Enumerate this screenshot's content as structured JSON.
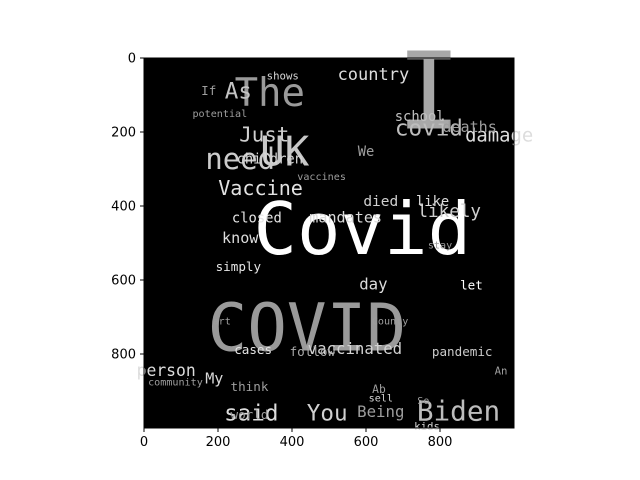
{
  "chart_data": {
    "type": "wordcloud-image",
    "title": "",
    "xlabel": "",
    "ylabel": "",
    "xlim": [
      0,
      1000
    ],
    "ylim": [
      1000,
      0
    ],
    "x_ticks": [
      0,
      200,
      400,
      600,
      800
    ],
    "y_ticks": [
      0,
      200,
      400,
      600,
      800
    ],
    "background_color": "#000000",
    "words": [
      {
        "text": "Covid",
        "x": 590,
        "y": 530,
        "size": 115,
        "color": "#ffffff"
      },
      {
        "text": "COVID",
        "x": 440,
        "y": 790,
        "size": 105,
        "color": "#9a9a9a"
      },
      {
        "text": "I",
        "x": 770,
        "y": 190,
        "size": 170,
        "color": "#a8a8a8"
      },
      {
        "text": "The",
        "x": 340,
        "y": 130,
        "size": 62,
        "color": "#9a9a9a"
      },
      {
        "text": "UK",
        "x": 380,
        "y": 290,
        "size": 65,
        "color": "#c8c8c8"
      },
      {
        "text": "need",
        "x": 260,
        "y": 300,
        "size": 46,
        "color": "#cccccc"
      },
      {
        "text": "Biden",
        "x": 850,
        "y": 980,
        "size": 44,
        "color": "#bdbdbd"
      },
      {
        "text": "said",
        "x": 290,
        "y": 980,
        "size": 36,
        "color": "#dddddd"
      },
      {
        "text": "You",
        "x": 495,
        "y": 980,
        "size": 36,
        "color": "#d0d0d0"
      },
      {
        "text": "Vaccine",
        "x": 315,
        "y": 370,
        "size": 32,
        "color": "#e2e2e2"
      },
      {
        "text": "As",
        "x": 255,
        "y": 110,
        "size": 36,
        "color": "#c4c4c4"
      },
      {
        "text": "Just",
        "x": 325,
        "y": 225,
        "size": 33,
        "color": "#d0d0d0"
      },
      {
        "text": "covid",
        "x": 770,
        "y": 210,
        "size": 36,
        "color": "#bdbdbd"
      },
      {
        "text": "damage",
        "x": 960,
        "y": 225,
        "size": 30,
        "color": "#dddddd"
      },
      {
        "text": "country",
        "x": 620,
        "y": 60,
        "size": 27,
        "color": "#dddddd"
      },
      {
        "text": "deaths",
        "x": 880,
        "y": 200,
        "size": 24,
        "color": "#9e9e9e"
      },
      {
        "text": "school",
        "x": 745,
        "y": 170,
        "size": 22,
        "color": "#c0c0c0"
      },
      {
        "text": "We",
        "x": 600,
        "y": 265,
        "size": 22,
        "color": "#9e9e9e"
      },
      {
        "text": "children",
        "x": 340,
        "y": 285,
        "size": 22,
        "color": "#d8d8d8"
      },
      {
        "text": "likely",
        "x": 825,
        "y": 430,
        "size": 28,
        "color": "#cfcfcf"
      },
      {
        "text": "mandates",
        "x": 545,
        "y": 445,
        "size": 24,
        "color": "#dadada"
      },
      {
        "text": "closed",
        "x": 305,
        "y": 445,
        "size": 22,
        "color": "#e4e4e4"
      },
      {
        "text": "died",
        "x": 640,
        "y": 400,
        "size": 23,
        "color": "#d0d0d0"
      },
      {
        "text": "like",
        "x": 780,
        "y": 400,
        "size": 22,
        "color": "#dcdcdc"
      },
      {
        "text": "know",
        "x": 260,
        "y": 500,
        "size": 24,
        "color": "#dddddd"
      },
      {
        "text": "simply",
        "x": 255,
        "y": 575,
        "size": 20,
        "color": "#e6e6e6"
      },
      {
        "text": "day",
        "x": 620,
        "y": 625,
        "size": 25,
        "color": "#dcdcdc"
      },
      {
        "text": "let",
        "x": 885,
        "y": 625,
        "size": 20,
        "color": "#ffffff"
      },
      {
        "text": "vaccinated",
        "x": 570,
        "y": 800,
        "size": 25,
        "color": "#d2d2d2"
      },
      {
        "text": "cases",
        "x": 295,
        "y": 800,
        "size": 20,
        "color": "#e4e4e4"
      },
      {
        "text": "follow",
        "x": 455,
        "y": 805,
        "size": 20,
        "color": "#aaaaaa"
      },
      {
        "text": "pandemic",
        "x": 860,
        "y": 805,
        "size": 20,
        "color": "#cacaca"
      },
      {
        "text": "person",
        "x": 60,
        "y": 860,
        "size": 26,
        "color": "#dcdcdc"
      },
      {
        "text": "community",
        "x": 85,
        "y": 885,
        "size": 16,
        "color": "#9e9e9e"
      },
      {
        "text": "think",
        "x": 285,
        "y": 900,
        "size": 20,
        "color": "#9e9e9e"
      },
      {
        "text": "world",
        "x": 285,
        "y": 975,
        "size": 20,
        "color": "#9e9e9e"
      },
      {
        "text": "My",
        "x": 190,
        "y": 880,
        "size": 24,
        "color": "#d8d8d8"
      },
      {
        "text": "Being",
        "x": 640,
        "y": 970,
        "size": 25,
        "color": "#9e9e9e"
      },
      {
        "text": "Ab",
        "x": 635,
        "y": 905,
        "size": 18,
        "color": "#9e9e9e"
      },
      {
        "text": "sell",
        "x": 640,
        "y": 928,
        "size": 16,
        "color": "#d6d6d6"
      },
      {
        "text": "kids",
        "x": 765,
        "y": 1005,
        "size": 17,
        "color": "#d8d8d8"
      },
      {
        "text": "So",
        "x": 755,
        "y": 935,
        "size": 16,
        "color": "#9e9e9e"
      },
      {
        "text": "An",
        "x": 965,
        "y": 855,
        "size": 17,
        "color": "#9e9e9e"
      },
      {
        "text": "County",
        "x": 665,
        "y": 720,
        "size": 16,
        "color": "#9e9e9e"
      },
      {
        "text": "art",
        "x": 210,
        "y": 720,
        "size": 16,
        "color": "#9e9e9e"
      },
      {
        "text": "stay",
        "x": 800,
        "y": 515,
        "size": 16,
        "color": "#9e9e9e"
      },
      {
        "text": "potential",
        "x": 205,
        "y": 160,
        "size": 16,
        "color": "#9e9e9e"
      },
      {
        "text": "If",
        "x": 175,
        "y": 100,
        "size": 20,
        "color": "#9e9e9e"
      },
      {
        "text": "shows",
        "x": 375,
        "y": 58,
        "size": 17,
        "color": "#d8d8d8"
      },
      {
        "text": "vaccines",
        "x": 480,
        "y": 330,
        "size": 16,
        "color": "#9e9e9e"
      }
    ]
  }
}
